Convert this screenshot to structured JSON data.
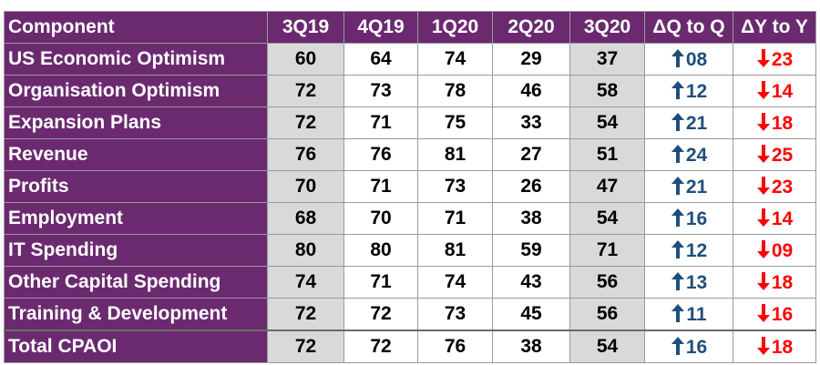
{
  "chart_data": {
    "type": "table",
    "columns": [
      "Component",
      "3Q19",
      "4Q19",
      "1Q20",
      "2Q20",
      "3Q20",
      "ΔQ to Q",
      "ΔY to Y"
    ],
    "rows": [
      {
        "component": "US Economic Optimism",
        "values": [
          "60",
          "64",
          "74",
          "29",
          "37"
        ],
        "dq": "08",
        "dy": "23"
      },
      {
        "component": "Organisation Optimism",
        "values": [
          "72",
          "73",
          "78",
          "46",
          "58"
        ],
        "dq": "12",
        "dy": "14"
      },
      {
        "component": "Expansion Plans",
        "values": [
          "72",
          "71",
          "75",
          "33",
          "54"
        ],
        "dq": "21",
        "dy": "18"
      },
      {
        "component": "Revenue",
        "values": [
          "76",
          "76",
          "81",
          "27",
          "51"
        ],
        "dq": "24",
        "dy": "25"
      },
      {
        "component": "Profits",
        "values": [
          "70",
          "71",
          "73",
          "26",
          "47"
        ],
        "dq": "21",
        "dy": "23"
      },
      {
        "component": "Employment",
        "values": [
          "68",
          "70",
          "71",
          "38",
          "54"
        ],
        "dq": "16",
        "dy": "14"
      },
      {
        "component": "IT Spending",
        "values": [
          "80",
          "80",
          "81",
          "59",
          "71"
        ],
        "dq": "12",
        "dy": "09"
      },
      {
        "component": "Other Capital Spending",
        "values": [
          "74",
          "71",
          "74",
          "43",
          "56"
        ],
        "dq": "13",
        "dy": "18"
      },
      {
        "component": "Training & Development",
        "values": [
          "72",
          "72",
          "73",
          "45",
          "56"
        ],
        "dq": "11",
        "dy": "16"
      },
      {
        "component": "Total CPAOI",
        "values": [
          "72",
          "72",
          "76",
          "38",
          "54"
        ],
        "dq": "16",
        "dy": "18"
      }
    ],
    "shaded_columns": [
      "3Q19",
      "3Q20"
    ],
    "delta_q_direction": "up",
    "delta_y_direction": "down"
  },
  "colors": {
    "header_bg": "#6b2a70",
    "header_text": "#ffffff",
    "shade": "#d9d9d9",
    "up_arrow": "#1f4e79",
    "down_arrow": "#ff0000"
  },
  "icons": {
    "up": "arrow-up-icon",
    "down": "arrow-down-icon"
  }
}
